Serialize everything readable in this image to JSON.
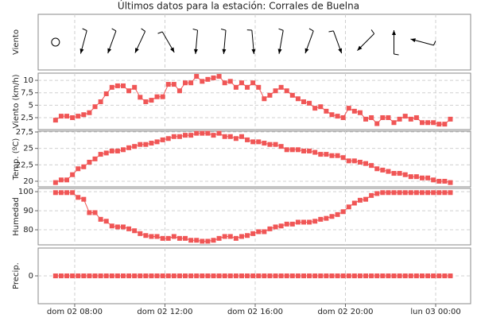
{
  "title": "Últimos datos para la estación: Corrales de Buelna",
  "x": [
    7.15,
    7.4,
    7.65,
    7.9,
    8.15,
    8.4,
    8.65,
    8.9,
    9.15,
    9.4,
    9.65,
    9.9,
    10.15,
    10.4,
    10.65,
    10.9,
    11.15,
    11.4,
    11.65,
    11.9,
    12.15,
    12.4,
    12.65,
    12.9,
    13.15,
    13.4,
    13.65,
    13.9,
    14.15,
    14.4,
    14.65,
    14.9,
    15.15,
    15.4,
    15.65,
    15.9,
    16.15,
    16.4,
    16.65,
    16.9,
    17.15,
    17.4,
    17.65,
    17.9,
    18.15,
    18.4,
    18.65,
    18.9,
    19.15,
    19.4,
    19.65,
    19.9,
    20.15,
    20.4,
    20.65,
    20.9,
    21.15,
    21.4,
    21.65,
    21.9,
    22.15,
    22.4,
    22.65,
    22.9,
    23.15,
    23.4,
    23.65,
    23.9,
    24.15,
    24.4,
    24.65
  ],
  "xlim": [
    6.38,
    25.55
  ],
  "xticks": [
    {
      "value": 8,
      "label": "dom 02 08:00"
    },
    {
      "value": 12,
      "label": "dom 02 12:00"
    },
    {
      "value": 16,
      "label": "dom 02 16:00"
    },
    {
      "value": 20,
      "label": "dom 02 20:00"
    },
    {
      "value": 24,
      "label": "lun 03 00:00"
    }
  ],
  "grid": true,
  "chart_data": [
    {
      "type": "wind-direction",
      "ylabel": "Viento",
      "color": "#000000",
      "x": [
        7.15,
        8.4,
        9.65,
        10.9,
        12.15,
        13.4,
        14.65,
        15.9,
        17.15,
        18.4,
        19.65,
        20.9,
        22.15,
        23.4
      ],
      "values": [
        null,
        15,
        20,
        25,
        330,
        5,
        5,
        355,
        10,
        20,
        340,
        45,
        180,
        105
      ]
    },
    {
      "type": "line",
      "ylabel": "Viento (km/h)",
      "color": "#f05656",
      "ylim": [
        0.1,
        11.45
      ],
      "yticks": [
        {
          "value": 2.5,
          "label": "2,5"
        },
        5,
        {
          "value": 7.5,
          "label": "7,5"
        },
        10
      ],
      "values": [
        2.0,
        2.8,
        2.8,
        2.5,
        2.8,
        3.1,
        3.5,
        4.7,
        5.7,
        7.3,
        8.6,
        8.9,
        8.9,
        7.9,
        8.6,
        6.6,
        5.7,
        6.0,
        6.7,
        6.7,
        9.2,
        9.2,
        7.9,
        9.5,
        9.5,
        10.8,
        9.8,
        10.2,
        10.5,
        10.8,
        9.5,
        9.8,
        8.6,
        9.5,
        8.6,
        9.5,
        8.6,
        6.3,
        7.0,
        7.9,
        8.6,
        7.9,
        7.0,
        6.3,
        5.7,
        5.4,
        4.4,
        4.7,
        3.8,
        3.1,
        2.8,
        2.5,
        4.4,
        3.8,
        3.5,
        2.2,
        2.5,
        1.3,
        2.5,
        2.5,
        1.5,
        2.2,
        2.8,
        2.2,
        2.5,
        1.5,
        1.5,
        1.5,
        1.2,
        1.2,
        2.2
      ]
    },
    {
      "type": "line",
      "ylabel": "Temp. (ºC)",
      "color": "#f05656",
      "ylim": [
        19.15,
        27.62
      ],
      "yticks": [
        20,
        {
          "value": 22.5,
          "label": "22,5"
        },
        25,
        {
          "value": 27.5,
          "label": "27,5"
        }
      ],
      "values": [
        19.8,
        20.2,
        20.2,
        21.0,
        21.9,
        22.2,
        22.9,
        23.4,
        24.1,
        24.3,
        24.6,
        24.6,
        24.8,
        25.1,
        25.3,
        25.6,
        25.6,
        25.8,
        26.0,
        26.3,
        26.5,
        26.8,
        26.8,
        27.0,
        27.0,
        27.3,
        27.3,
        27.3,
        27.0,
        27.3,
        26.8,
        26.8,
        26.5,
        26.8,
        26.3,
        26.0,
        26.0,
        25.8,
        25.6,
        25.6,
        25.3,
        24.8,
        24.8,
        24.8,
        24.6,
        24.6,
        24.4,
        24.1,
        24.1,
        23.9,
        23.9,
        23.6,
        23.1,
        23.1,
        22.9,
        22.7,
        22.4,
        21.9,
        21.7,
        21.5,
        21.2,
        21.2,
        21.0,
        20.7,
        20.7,
        20.5,
        20.5,
        20.2,
        20.0,
        20.0,
        19.8
      ]
    },
    {
      "type": "line",
      "ylabel": "Humedad",
      "color": "#f05656",
      "ylim": [
        72.1,
        101.7
      ],
      "yticks": [
        80,
        90,
        100
      ],
      "values": [
        99.5,
        99.5,
        99.5,
        99.5,
        97,
        96,
        89,
        89,
        85.5,
        84.5,
        82,
        81.5,
        81.5,
        80.5,
        79.5,
        78,
        77,
        76.5,
        76.5,
        75.5,
        75.5,
        76.5,
        75.5,
        75.5,
        74.5,
        74.5,
        74,
        74,
        74.5,
        75.5,
        76.5,
        76.5,
        75.5,
        76.5,
        77,
        78,
        79,
        79,
        80.5,
        81.5,
        82,
        83,
        83,
        84,
        84,
        84,
        84.5,
        85.5,
        86,
        87,
        88,
        89.5,
        92,
        94,
        95.5,
        96,
        98,
        99,
        99.5,
        99.5,
        99.5,
        99.5,
        99.5,
        99.5,
        99.5,
        99.5,
        99.5,
        99.5,
        99.5,
        99.5,
        99.5
      ]
    },
    {
      "type": "line",
      "ylabel": "Precip.",
      "color": "#f05656",
      "ylim": [
        -1,
        1
      ],
      "yticks": [
        0
      ],
      "values": [
        0,
        0,
        0,
        0,
        0,
        0,
        0,
        0,
        0,
        0,
        0,
        0,
        0,
        0,
        0,
        0,
        0,
        0,
        0,
        0,
        0,
        0,
        0,
        0,
        0,
        0,
        0,
        0,
        0,
        0,
        0,
        0,
        0,
        0,
        0,
        0,
        0,
        0,
        0,
        0,
        0,
        0,
        0,
        0,
        0,
        0,
        0,
        0,
        0,
        0,
        0,
        0,
        0,
        0,
        0,
        0,
        0,
        0,
        0,
        0,
        0,
        0,
        0,
        0,
        0,
        0,
        0,
        0,
        0,
        0,
        0
      ]
    }
  ]
}
